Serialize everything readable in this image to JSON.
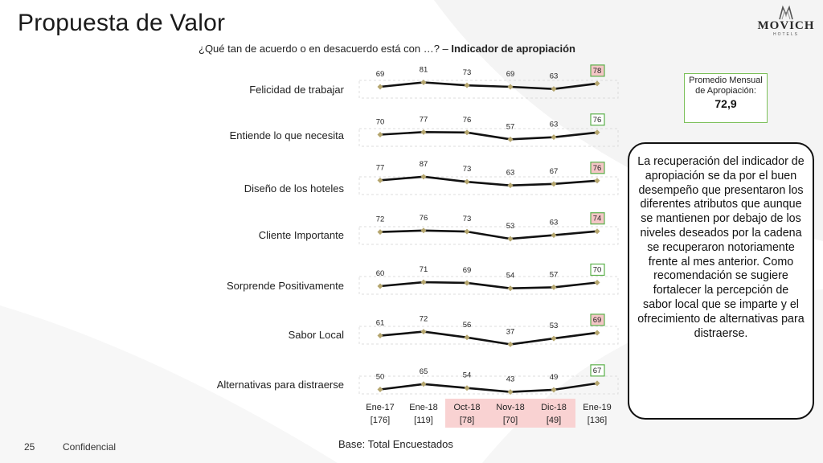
{
  "slide": {
    "title": "Propuesta de Valor",
    "logo_text": "MOVICH",
    "logo_subtext": "HOTELS",
    "subtitle_prefix": "¿Qué tan de acuerdo o en desacuerdo está con …? – ",
    "subtitle_bold": "Indicador de apropiación",
    "page_number": "25",
    "confidential_label": "Confidencial",
    "base_label": "Base: Total Encuestados"
  },
  "average_box": {
    "label": "Promedio Mensual de Apropiación:",
    "value": "72,9"
  },
  "callout": {
    "text": "La recuperación del indicador de apropiación se da por el buen desempeño que presentaron los diferentes atributos que aunque se mantienen por debajo de los niveles deseados por la cadena se recuperaron notoriamente frente al mes anterior. Como recomendación se sugiere fortalecer la percepción de sabor local que se imparte y el ofrecimiento de alternativas para distraerse."
  },
  "colors": {
    "line": "#111111",
    "marker": "#b5a66e",
    "highlight_fill": "#f4c6c6",
    "highlight_border": "#5bb04a",
    "period_highlight": "#f9d2d2"
  },
  "chart_data": {
    "type": "line",
    "categories": [
      "Ene-17",
      "Ene-18",
      "Oct-18",
      "Nov-18",
      "Dic-18",
      "Ene-19"
    ],
    "bases": [
      "[176]",
      "[119]",
      "[78]",
      "[70]",
      "[49]",
      "[136]"
    ],
    "highlighted_periods": [
      "Oct-18",
      "Nov-18",
      "Dic-18"
    ],
    "series": [
      {
        "name": "Felicidad de trabajar",
        "values": [
          69,
          81,
          73,
          69,
          63,
          78
        ],
        "last_fill": true
      },
      {
        "name": "Entiende lo que necesita",
        "values": [
          70,
          77,
          76,
          57,
          63,
          76
        ],
        "last_fill": false
      },
      {
        "name": "Diseño de los hoteles",
        "values": [
          77,
          87,
          73,
          63,
          67,
          76
        ],
        "last_fill": true
      },
      {
        "name": "Cliente Importante",
        "values": [
          72,
          76,
          73,
          53,
          63,
          74
        ],
        "last_fill": true
      },
      {
        "name": "Sorprende Positivamente",
        "values": [
          60,
          71,
          69,
          54,
          57,
          70
        ],
        "last_fill": false
      },
      {
        "name": "Sabor Local",
        "values": [
          61,
          72,
          56,
          37,
          53,
          69
        ],
        "last_fill": true
      },
      {
        "name": "Alternativas para distraerse",
        "values": [
          50,
          65,
          54,
          43,
          49,
          67
        ],
        "last_fill": false
      }
    ]
  }
}
